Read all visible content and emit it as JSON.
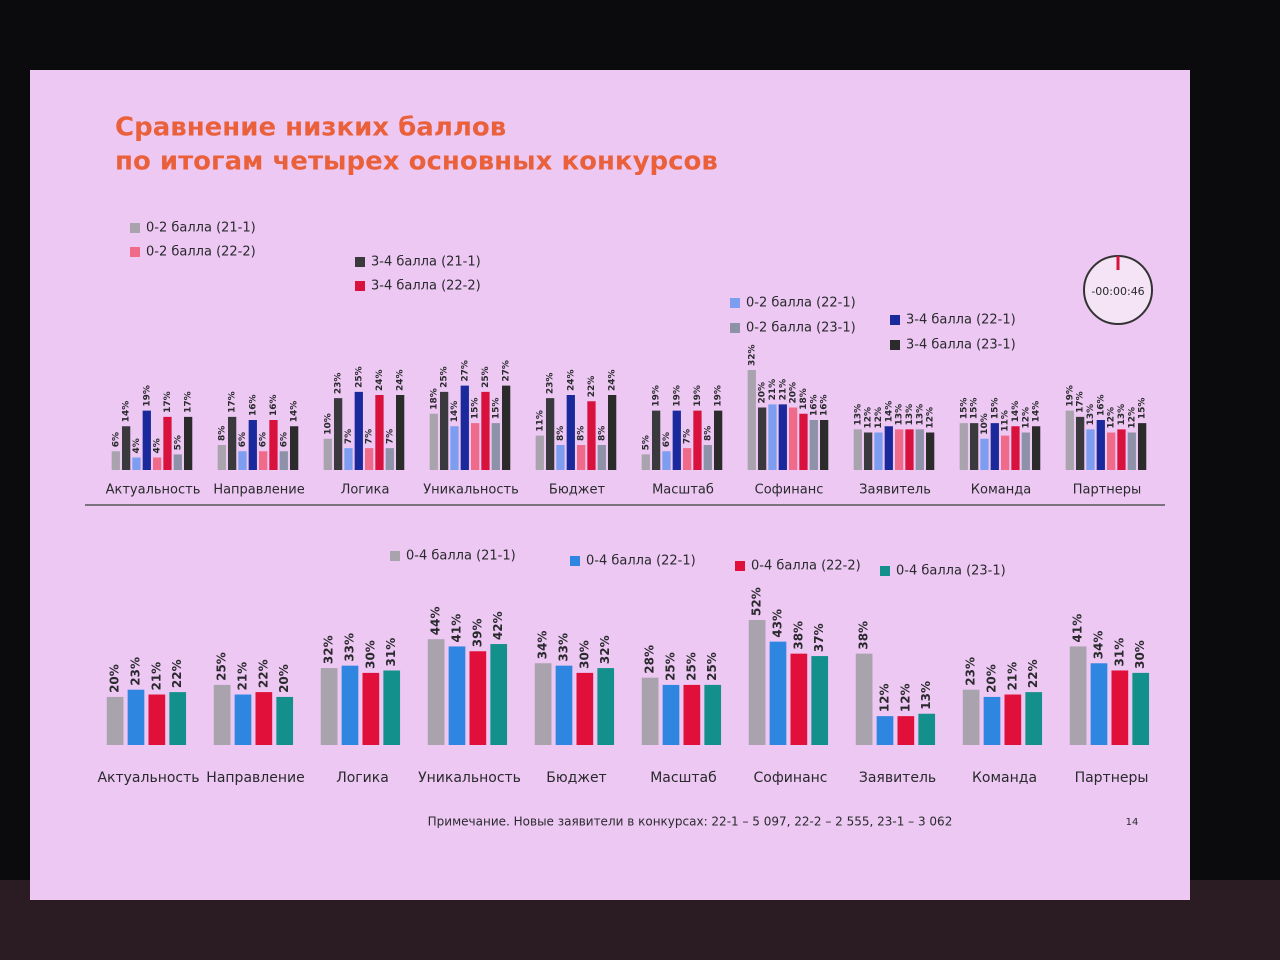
{
  "slide": {
    "title": [
      "Сравнение низких баллов",
      "по итогам четырех основных конкурсов"
    ],
    "timer": "-00:00:46",
    "note": "Примечание. Новые заявители в конкурсах: 22-1 – 5 097, 22-2 – 2 555, 23-1 – 3 062",
    "page_number": "14"
  },
  "chart_data": [
    {
      "type": "bar",
      "categories": [
        "Актуальность",
        "Направление",
        "Логика",
        "Уникальность",
        "Бюджет",
        "Масштаб",
        "Софинанс",
        "Заявитель",
        "Команда",
        "Партнеры"
      ],
      "series": [
        {
          "name": "0-2 балла (21-1)",
          "color": "#a9a3ad",
          "values": [
            6,
            8,
            10,
            18,
            11,
            5,
            32,
            13,
            15,
            19
          ],
          "value_labels": [
            "6%",
            "8%",
            "10%",
            "18%",
            "11%",
            "5%",
            "32%",
            "13%",
            "15%",
            "19%"
          ]
        },
        {
          "name": "3-4 балла (21-1)",
          "color": "#3a3a3e",
          "values": [
            14,
            17,
            23,
            25,
            23,
            19,
            20,
            12,
            15,
            17
          ],
          "value_labels": [
            "14%",
            "17%",
            "23%",
            "25%",
            "23%",
            "19%",
            "20%",
            "12%",
            "15%",
            "17%"
          ]
        },
        {
          "name": "0-2 балла (22-1)",
          "color": "#7d9ef0",
          "values": [
            4,
            6,
            7,
            14,
            8,
            6,
            21,
            12,
            10,
            13
          ],
          "value_labels": [
            "4%",
            "6%",
            "7%",
            "14%",
            "8%",
            "6%",
            "21%",
            "12%",
            "10%",
            "13%"
          ]
        },
        {
          "name": "3-4 балла (22-1)",
          "color": "#1a2a9c",
          "values": [
            19,
            16,
            25,
            27,
            24,
            19,
            21,
            14,
            15,
            16
          ],
          "value_labels": [
            "19%",
            "16%",
            "25%",
            "27%",
            "24%",
            "19%",
            "21%",
            "14%",
            "15%",
            "16%"
          ]
        },
        {
          "name": "0-2 балла (22-2)",
          "color": "#f06a8a",
          "values": [
            4,
            6,
            7,
            15,
            8,
            7,
            20,
            13,
            11,
            12
          ],
          "value_labels": [
            "4%",
            "6%",
            "7%",
            "15%",
            "8%",
            "7%",
            "20%",
            "13%",
            "11%",
            "12%"
          ]
        },
        {
          "name": "3-4 балла (22-2)",
          "color": "#d8123c",
          "values": [
            17,
            16,
            24,
            25,
            22,
            19,
            18,
            13,
            14,
            13
          ],
          "value_labels": [
            "17%",
            "16%",
            "24%",
            "25%",
            "22%",
            "19%",
            "18%",
            "13%",
            "14%",
            "13%"
          ]
        },
        {
          "name": "0-2 балла (23-1)",
          "color": "#8e92a8",
          "values": [
            5,
            6,
            7,
            15,
            8,
            8,
            16,
            13,
            12,
            12
          ],
          "value_labels": [
            "5%",
            "6%",
            "7%",
            "15%",
            "8%",
            "8%",
            "16%",
            "13%",
            "12%",
            "12%"
          ]
        },
        {
          "name": "3-4 балла (23-1)",
          "color": "#2b2b2b",
          "values": [
            17,
            14,
            24,
            27,
            24,
            19,
            16,
            12,
            14,
            15
          ],
          "value_labels": [
            "17%",
            "14%",
            "24%",
            "27%",
            "24%",
            "19%",
            "16%",
            "12%",
            "14%",
            "15%"
          ]
        }
      ]
    },
    {
      "type": "bar",
      "categories": [
        "Актуальность",
        "Направление",
        "Логика",
        "Уникальность",
        "Бюджет",
        "Масштаб",
        "Софинанс",
        "Заявитель",
        "Команда",
        "Партнеры"
      ],
      "series": [
        {
          "name": "0-4 балла (21-1)",
          "color": "#a8a3ac",
          "values": [
            20,
            25,
            32,
            44,
            34,
            28,
            52,
            38,
            23,
            41
          ],
          "value_labels": [
            "20%",
            "25%",
            "32%",
            "44%",
            "34%",
            "28%",
            "52%",
            "38%",
            "23%",
            "41%"
          ]
        },
        {
          "name": "0-4 балла (22-1)",
          "color": "#2f86e0",
          "values": [
            23,
            21,
            33,
            41,
            33,
            25,
            43,
            12,
            20,
            34
          ],
          "value_labels": [
            "23%",
            "21%",
            "33%",
            "41%",
            "33%",
            "25%",
            "43%",
            "12%",
            "20%",
            "34%"
          ]
        },
        {
          "name": "0-4 балла (22-2)",
          "color": "#e0103a",
          "values": [
            21,
            22,
            30,
            39,
            30,
            25,
            38,
            12,
            21,
            31
          ],
          "value_labels": [
            "21%",
            "22%",
            "30%",
            "39%",
            "30%",
            "25%",
            "38%",
            "12%",
            "21%",
            "31%"
          ]
        },
        {
          "name": "0-4 балла (23-1)",
          "color": "#14908c",
          "values": [
            22,
            20,
            31,
            42,
            32,
            25,
            37,
            13,
            22,
            30
          ],
          "value_labels": [
            "22%",
            "20%",
            "31%",
            "42%",
            "32%",
            "25%",
            "37%",
            "13%",
            "22%",
            "30%"
          ]
        }
      ]
    }
  ]
}
